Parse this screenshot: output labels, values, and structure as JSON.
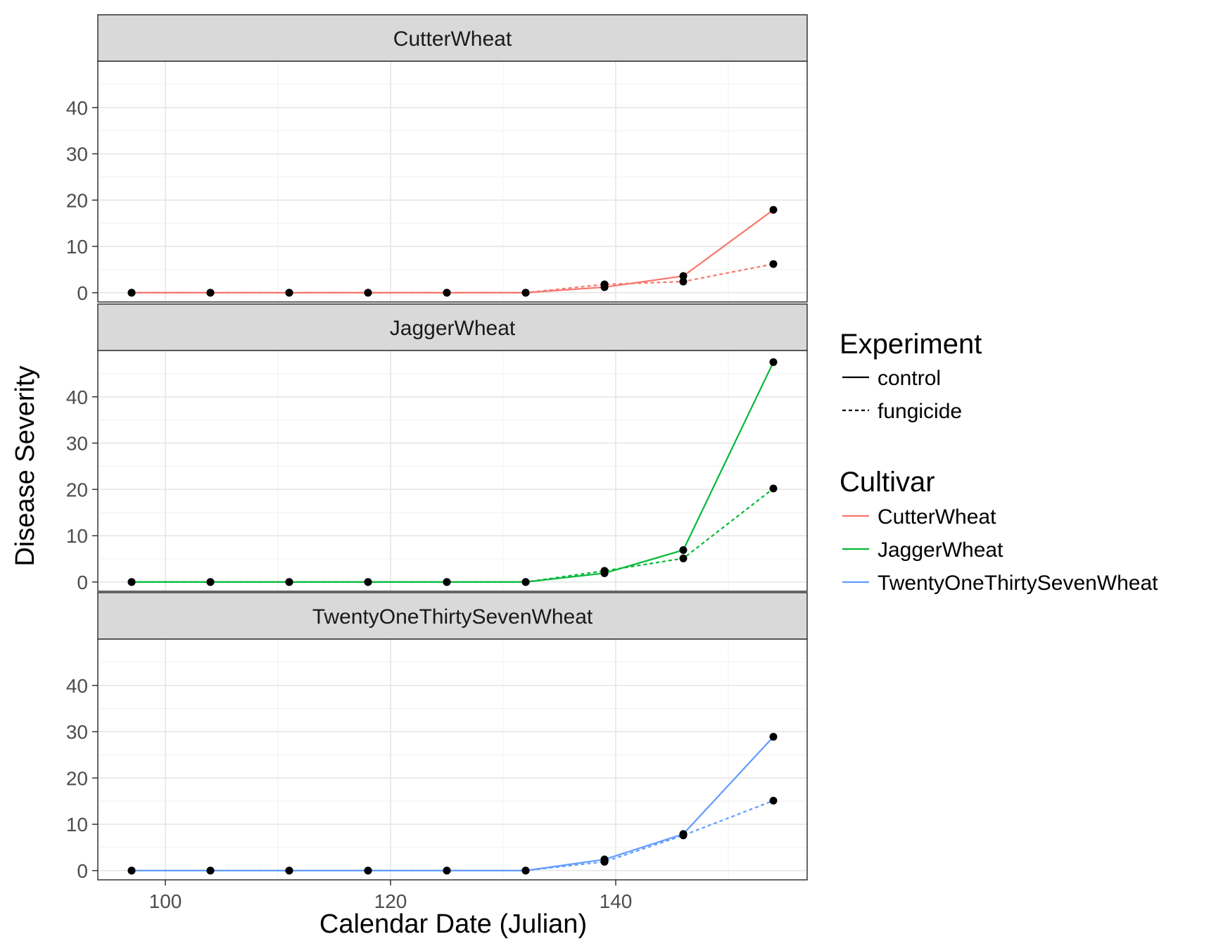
{
  "chart_data": {
    "type": "line",
    "xlabel": "Calendar Date (Julian)",
    "ylabel": "Disease Severity",
    "xlim": [
      94,
      157
    ],
    "ylim": [
      -2,
      50
    ],
    "x_ticks": [
      100,
      120,
      140
    ],
    "y_ticks": [
      0,
      10,
      20,
      30,
      40
    ],
    "grid": true,
    "legend_position": "right",
    "legends": {
      "experiment": {
        "title": "Experiment",
        "entries": [
          {
            "key": "control",
            "label": "control",
            "linestyle": "solid"
          },
          {
            "key": "fungicide",
            "label": "fungicide",
            "linestyle": "dashed"
          }
        ]
      },
      "cultivar": {
        "title": "Cultivar",
        "entries": [
          {
            "key": "CutterWheat",
            "label": "CutterWheat",
            "color": "#F8766D"
          },
          {
            "key": "JaggerWheat",
            "label": "JaggerWheat",
            "color": "#00BA38"
          },
          {
            "key": "TwentyOneThirtySevenWheat",
            "label": "TwentyOneThirtySevenWheat",
            "color": "#619CFF"
          }
        ]
      }
    },
    "x": [
      97,
      104,
      111,
      118,
      125,
      132,
      139,
      146,
      154
    ],
    "facets": [
      {
        "title": "CutterWheat",
        "color": "#F8766D",
        "series": [
          {
            "experiment": "control",
            "values": [
              0,
              0,
              0,
              0,
              0,
              0,
              1.2,
              3.6,
              17.9
            ]
          },
          {
            "experiment": "fungicide",
            "values": [
              0,
              0,
              0,
              0,
              0,
              0,
              1.8,
              2.4,
              6.2
            ]
          }
        ]
      },
      {
        "title": "JaggerWheat",
        "color": "#00BA38",
        "series": [
          {
            "experiment": "control",
            "values": [
              0,
              0,
              0,
              0,
              0,
              0,
              1.9,
              6.9,
              47.5
            ]
          },
          {
            "experiment": "fungicide",
            "values": [
              0,
              0,
              0,
              0,
              0,
              0,
              2.4,
              5.1,
              20.2
            ]
          }
        ]
      },
      {
        "title": "TwentyOneThirtySevenWheat",
        "color": "#619CFF",
        "series": [
          {
            "experiment": "control",
            "values": [
              0,
              0,
              0,
              0,
              0,
              0,
              2.4,
              7.9,
              28.9
            ]
          },
          {
            "experiment": "fungicide",
            "values": [
              0,
              0,
              0,
              0,
              0,
              0,
              1.9,
              7.6,
              15.1
            ]
          }
        ]
      }
    ],
    "point_color": "#000000"
  }
}
